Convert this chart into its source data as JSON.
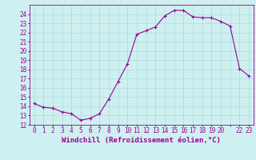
{
  "x": [
    0,
    1,
    2,
    3,
    4,
    5,
    6,
    7,
    8,
    9,
    10,
    11,
    12,
    13,
    14,
    15,
    16,
    17,
    18,
    19,
    20,
    21,
    22,
    23
  ],
  "y": [
    14.3,
    13.9,
    13.8,
    13.4,
    13.2,
    12.5,
    12.7,
    13.2,
    14.8,
    16.7,
    18.6,
    21.8,
    22.2,
    22.6,
    23.8,
    24.4,
    24.4,
    23.7,
    23.6,
    23.6,
    23.2,
    22.7,
    18.1,
    17.3
  ],
  "xlabel": "Windchill (Refroidissement éolien,°C)",
  "bg_color": "#cff0f0",
  "line_color": "#990099",
  "grid_color": "#aadddd",
  "ylim": [
    12,
    25
  ],
  "xlim": [
    -0.5,
    23.5
  ],
  "yticks": [
    12,
    13,
    14,
    15,
    16,
    17,
    18,
    19,
    20,
    21,
    22,
    23,
    24
  ],
  "xticks": [
    0,
    1,
    2,
    3,
    4,
    5,
    6,
    7,
    8,
    9,
    10,
    11,
    12,
    13,
    14,
    15,
    16,
    17,
    18,
    19,
    20,
    21,
    22,
    23
  ],
  "xtick_labels": [
    "0",
    "1",
    "2",
    "3",
    "4",
    "5",
    "6",
    "7",
    "8",
    "9",
    "10",
    "11",
    "12",
    "13",
    "14",
    "15",
    "16",
    "17",
    "18",
    "19",
    "20",
    "",
    "22",
    "23"
  ],
  "tick_fontsize": 5.5,
  "label_fontsize": 6.5
}
